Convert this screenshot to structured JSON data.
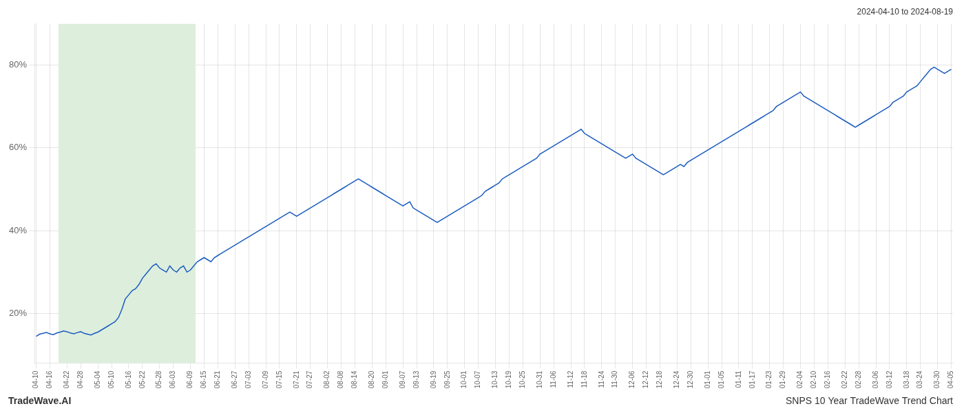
{
  "chart_data": {
    "type": "line",
    "title": "SNPS 10 Year TradeWave Trend Chart",
    "subtitle": "2024-04-10 to 2024-08-19",
    "annotations": [
      "TradeWave.AI"
    ],
    "categories": [
      "04-10",
      null,
      null,
      null,
      "04-16",
      null,
      null,
      null,
      null,
      "04-22",
      null,
      null,
      null,
      "04-28",
      null,
      null,
      null,
      null,
      "05-04",
      null,
      null,
      null,
      "05-10",
      null,
      null,
      null,
      null,
      "05-16",
      null,
      null,
      null,
      "05-22",
      null,
      null,
      null,
      null,
      "05-28",
      null,
      null,
      null,
      "06-03",
      null,
      null,
      null,
      null,
      "06-09",
      null,
      null,
      null,
      "06-15",
      null,
      null,
      null,
      "06-21",
      null,
      null,
      null,
      null,
      "06-27",
      null,
      null,
      null,
      "07-03",
      null,
      null,
      null,
      null,
      "07-09",
      null,
      null,
      null,
      "07-15",
      null,
      null,
      null,
      null,
      "07-21",
      null,
      null,
      null,
      "07-27",
      null,
      null,
      null,
      null,
      "08-02",
      null,
      null,
      null,
      "08-08",
      null,
      null,
      null,
      "08-14",
      null,
      null,
      null,
      null,
      "08-20",
      null,
      null,
      null,
      "09-01",
      null,
      null,
      null,
      null,
      "09-07",
      null,
      null,
      null,
      "09-13",
      null,
      null,
      null,
      null,
      "09-19",
      null,
      null,
      null,
      "09-25",
      null,
      null,
      null,
      null,
      "10-01",
      null,
      null,
      null,
      "10-07",
      null,
      null,
      null,
      null,
      "10-13",
      null,
      null,
      null,
      "10-19",
      null,
      null,
      null,
      "10-25",
      null,
      null,
      null,
      null,
      "10-31",
      null,
      null,
      null,
      "11-06",
      null,
      null,
      null,
      null,
      "11-12",
      null,
      null,
      null,
      "11-18",
      null,
      null,
      null,
      null,
      "11-24",
      null,
      null,
      null,
      "11-30",
      null,
      null,
      null,
      null,
      "12-06",
      null,
      null,
      null,
      "12-12",
      null,
      null,
      null,
      "12-18",
      null,
      null,
      null,
      null,
      "12-24",
      null,
      null,
      null,
      "12-30",
      null,
      null,
      null,
      null,
      "01-01",
      null,
      null,
      null,
      "01-05",
      null,
      null,
      null,
      null,
      "01-11",
      null,
      null,
      null,
      "01-17",
      null,
      null,
      null,
      null,
      "01-23",
      null,
      null,
      null,
      "01-29",
      null,
      null,
      null,
      null,
      "02-04",
      null,
      null,
      null,
      "02-10",
      null,
      null,
      null,
      "02-16",
      null,
      null,
      null,
      null,
      "02-22",
      null,
      null,
      null,
      "02-28",
      null,
      null,
      null,
      null,
      "03-06",
      null,
      null,
      null,
      "03-12",
      null,
      null,
      null,
      null,
      "03-18",
      null,
      null,
      null,
      "03-24",
      null,
      null,
      null,
      null,
      "03-30",
      null,
      null,
      null,
      "04-05"
    ],
    "values": [
      14.5,
      15.0,
      15.2,
      15.4,
      15.1,
      14.9,
      15.3,
      15.5,
      15.8,
      15.6,
      15.3,
      15.1,
      15.4,
      15.6,
      15.2,
      15.0,
      14.8,
      15.2,
      15.5,
      16.0,
      16.5,
      17.0,
      17.5,
      18.0,
      19.0,
      21.0,
      23.5,
      24.5,
      25.5,
      26.0,
      27.0,
      28.5,
      29.5,
      30.5,
      31.5,
      32.0,
      31.0,
      30.5,
      30.0,
      31.5,
      30.5,
      30.0,
      31.0,
      31.5,
      30.0,
      30.5,
      31.5,
      32.5,
      33.0,
      33.5,
      33.0,
      32.5,
      33.5,
      34.0,
      34.5,
      35.0,
      35.5,
      36.0,
      36.5,
      37.0,
      37.5,
      38.0,
      38.5,
      39.0,
      39.5,
      40.0,
      40.5,
      41.0,
      41.5,
      42.0,
      42.5,
      43.0,
      43.5,
      44.0,
      44.5,
      44.0,
      43.5,
      44.0,
      44.5,
      45.0,
      45.5,
      46.0,
      46.5,
      47.0,
      47.5,
      48.0,
      48.5,
      49.0,
      49.5,
      50.0,
      50.5,
      51.0,
      51.5,
      52.0,
      52.5,
      52.0,
      51.5,
      51.0,
      50.5,
      50.0,
      49.5,
      49.0,
      48.5,
      48.0,
      47.5,
      47.0,
      46.5,
      46.0,
      46.5,
      47.0,
      45.5,
      45.0,
      44.5,
      44.0,
      43.5,
      43.0,
      42.5,
      42.0,
      42.5,
      43.0,
      43.5,
      44.0,
      44.5,
      45.0,
      45.5,
      46.0,
      46.5,
      47.0,
      47.5,
      48.0,
      48.5,
      49.5,
      50.0,
      50.5,
      51.0,
      51.5,
      52.5,
      53.0,
      53.5,
      54.0,
      54.5,
      55.0,
      55.5,
      56.0,
      56.5,
      57.0,
      57.5,
      58.5,
      59.0,
      59.5,
      60.0,
      60.5,
      61.0,
      61.5,
      62.0,
      62.5,
      63.0,
      63.5,
      64.0,
      64.5,
      63.5,
      63.0,
      62.5,
      62.0,
      61.5,
      61.0,
      60.5,
      60.0,
      59.5,
      59.0,
      58.5,
      58.0,
      57.5,
      58.0,
      58.5,
      57.5,
      57.0,
      56.5,
      56.0,
      55.5,
      55.0,
      54.5,
      54.0,
      53.5,
      54.0,
      54.5,
      55.0,
      55.5,
      56.0,
      55.5,
      56.5,
      57.0,
      57.5,
      58.0,
      58.5,
      59.0,
      59.5,
      60.0,
      60.5,
      61.0,
      61.5,
      62.0,
      62.5,
      63.0,
      63.5,
      64.0,
      64.5,
      65.0,
      65.5,
      66.0,
      66.5,
      67.0,
      67.5,
      68.0,
      68.5,
      69.0,
      70.0,
      70.5,
      71.0,
      71.5,
      72.0,
      72.5,
      73.0,
      73.5,
      72.5,
      72.0,
      71.5,
      71.0,
      70.5,
      70.0,
      69.5,
      69.0,
      68.5,
      68.0,
      67.5,
      67.0,
      66.5,
      66.0,
      65.5,
      65.0,
      65.5,
      66.0,
      66.5,
      67.0,
      67.5,
      68.0,
      68.5,
      69.0,
      69.5,
      70.0,
      71.0,
      71.5,
      72.0,
      72.5,
      73.5,
      74.0,
      74.5,
      75.0,
      76.0,
      77.0,
      78.0,
      79.0,
      79.5,
      79.0,
      78.5,
      78.0,
      78.5,
      79.0
    ],
    "color": "#1a5bbf",
    "ylim": [
      8,
      90
    ],
    "yticks": [
      {
        "value": 20,
        "label": "20%"
      },
      {
        "value": 40,
        "label": "40%"
      },
      {
        "value": 60,
        "label": "60%"
      },
      {
        "value": 80,
        "label": "80%"
      }
    ],
    "grid": true,
    "highlight": {
      "from": 7,
      "to": 46,
      "color": "#ddeedd"
    }
  }
}
